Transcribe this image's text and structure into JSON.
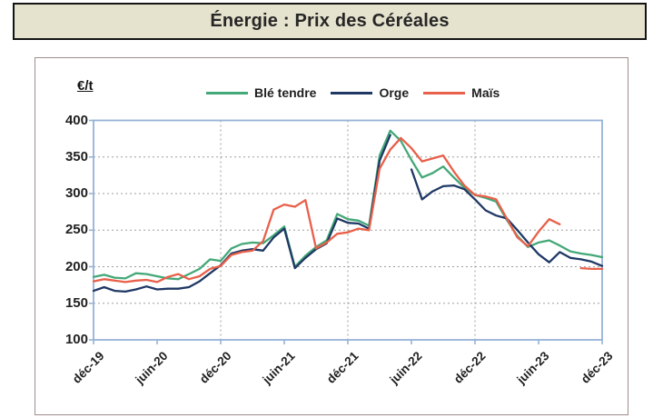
{
  "title_bar": {
    "text": "Énergie : Prix des Céréales"
  },
  "colors": {
    "title_bar_bg": "#E5E2CD",
    "title_bar_border": "#141414",
    "card_border": "#A38C8C",
    "axis": "#95B3D7",
    "gridline": "#9E9E9E",
    "label_text": "#1F1F1F"
  },
  "chart_data": {
    "type": "line",
    "title": "Énergie : Prix des Céréales",
    "ylabel": "€/t",
    "ylim": [
      100,
      400
    ],
    "y_ticks": [
      100,
      150,
      200,
      250,
      300,
      350,
      400
    ],
    "x_tick_labels": [
      "déc-19",
      "juin-20",
      "déc-20",
      "juin-21",
      "déc-21",
      "juin-22",
      "déc-22",
      "juin-23",
      "déc-23"
    ],
    "x_tick_indices": [
      0,
      6,
      12,
      18,
      24,
      30,
      36,
      42,
      48
    ],
    "year_gridline_indices": [
      12,
      24,
      36
    ],
    "grid": "horizontal dotted lines every 50 €/t, vertical dotted lines at déc-20, déc-21, déc-22",
    "legend_position": "top",
    "x_monthly": [
      "déc-19",
      "janv-20",
      "févr-20",
      "mars-20",
      "avr-20",
      "mai-20",
      "juin-20",
      "juil-20",
      "août-20",
      "sept-20",
      "oct-20",
      "nov-20",
      "déc-20",
      "janv-21",
      "févr-21",
      "mars-21",
      "avr-21",
      "mai-21",
      "juin-21",
      "juil-21",
      "août-21",
      "sept-21",
      "oct-21",
      "nov-21",
      "déc-21",
      "janv-22",
      "févr-22",
      "mars-22",
      "avr-22",
      "mai-22",
      "juin-22",
      "juil-22",
      "août-22",
      "sept-22",
      "oct-22",
      "nov-22",
      "déc-22",
      "janv-23",
      "févr-23",
      "mars-23",
      "avr-23",
      "mai-23",
      "juin-23",
      "juil-23",
      "août-23",
      "sept-23",
      "oct-23",
      "nov-23",
      "déc-23"
    ],
    "series": [
      {
        "name": "Blé tendre",
        "color": "#44A878",
        "values": [
          186,
          189,
          185,
          184,
          191,
          190,
          187,
          184,
          183,
          190,
          197,
          210,
          208,
          225,
          231,
          233,
          232,
          243,
          255,
          200,
          215,
          227,
          236,
          272,
          265,
          263,
          256,
          352,
          386,
          372,
          346,
          322,
          328,
          337,
          322,
          308,
          298,
          294,
          289,
          264,
          242,
          227,
          233,
          236,
          229,
          221,
          218,
          216,
          213
        ]
      },
      {
        "name": "Orge",
        "color": "#1F3864",
        "values": [
          167,
          172,
          167,
          166,
          169,
          173,
          169,
          170,
          170,
          172,
          180,
          191,
          202,
          218,
          222,
          224,
          222,
          240,
          252,
          198,
          212,
          224,
          232,
          266,
          260,
          259,
          252,
          345,
          380,
          null,
          333,
          292,
          303,
          310,
          311,
          306,
          292,
          277,
          270,
          266,
          250,
          233,
          217,
          206,
          220,
          212,
          210,
          207,
          201
        ]
      },
      {
        "name": "Maïs",
        "color": "#E8604A",
        "values": [
          180,
          183,
          181,
          179,
          181,
          182,
          179,
          186,
          190,
          183,
          187,
          197,
          201,
          216,
          220,
          222,
          235,
          278,
          285,
          282,
          291,
          225,
          233,
          245,
          247,
          252,
          250,
          334,
          360,
          376,
          362,
          344,
          348,
          352,
          330,
          311,
          298,
          296,
          292,
          266,
          240,
          228,
          248,
          265,
          258,
          null,
          198,
          197,
          197
        ]
      }
    ]
  }
}
